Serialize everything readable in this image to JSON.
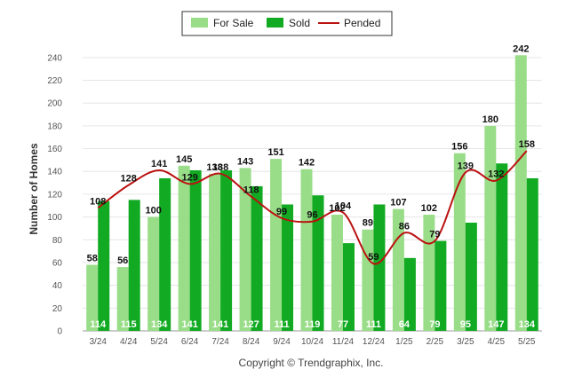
{
  "chart_data": {
    "type": "bar",
    "ylabel": "Number of Homes",
    "ylim": [
      0,
      250
    ],
    "yticks": [
      0,
      20,
      40,
      60,
      80,
      100,
      120,
      140,
      160,
      180,
      200,
      220,
      240
    ],
    "grid": true,
    "legend_position": "top-center",
    "categories": [
      "3/24",
      "4/24",
      "5/24",
      "6/24",
      "7/24",
      "8/24",
      "9/24",
      "10/24",
      "11/24",
      "12/24",
      "1/25",
      "2/25",
      "3/25",
      "4/25",
      "5/25"
    ],
    "series": [
      {
        "name": "For Sale",
        "type": "bar",
        "color": "#99dd88",
        "values": [
          58,
          56,
          100,
          145,
          138,
          143,
          151,
          142,
          102,
          89,
          107,
          102,
          156,
          180,
          242
        ]
      },
      {
        "name": "Sold",
        "type": "bar",
        "color": "#11aa22",
        "values": [
          114,
          115,
          134,
          141,
          141,
          127,
          111,
          119,
          77,
          111,
          64,
          79,
          95,
          147,
          134
        ]
      },
      {
        "name": "Pended",
        "type": "line",
        "color": "#bb1111",
        "values": [
          108,
          128,
          141,
          129,
          138,
          118,
          99,
          96,
          104,
          59,
          86,
          79,
          139,
          132,
          158
        ]
      }
    ]
  },
  "footer": {
    "copyright": "Copyright © Trendgraphix, Inc."
  }
}
